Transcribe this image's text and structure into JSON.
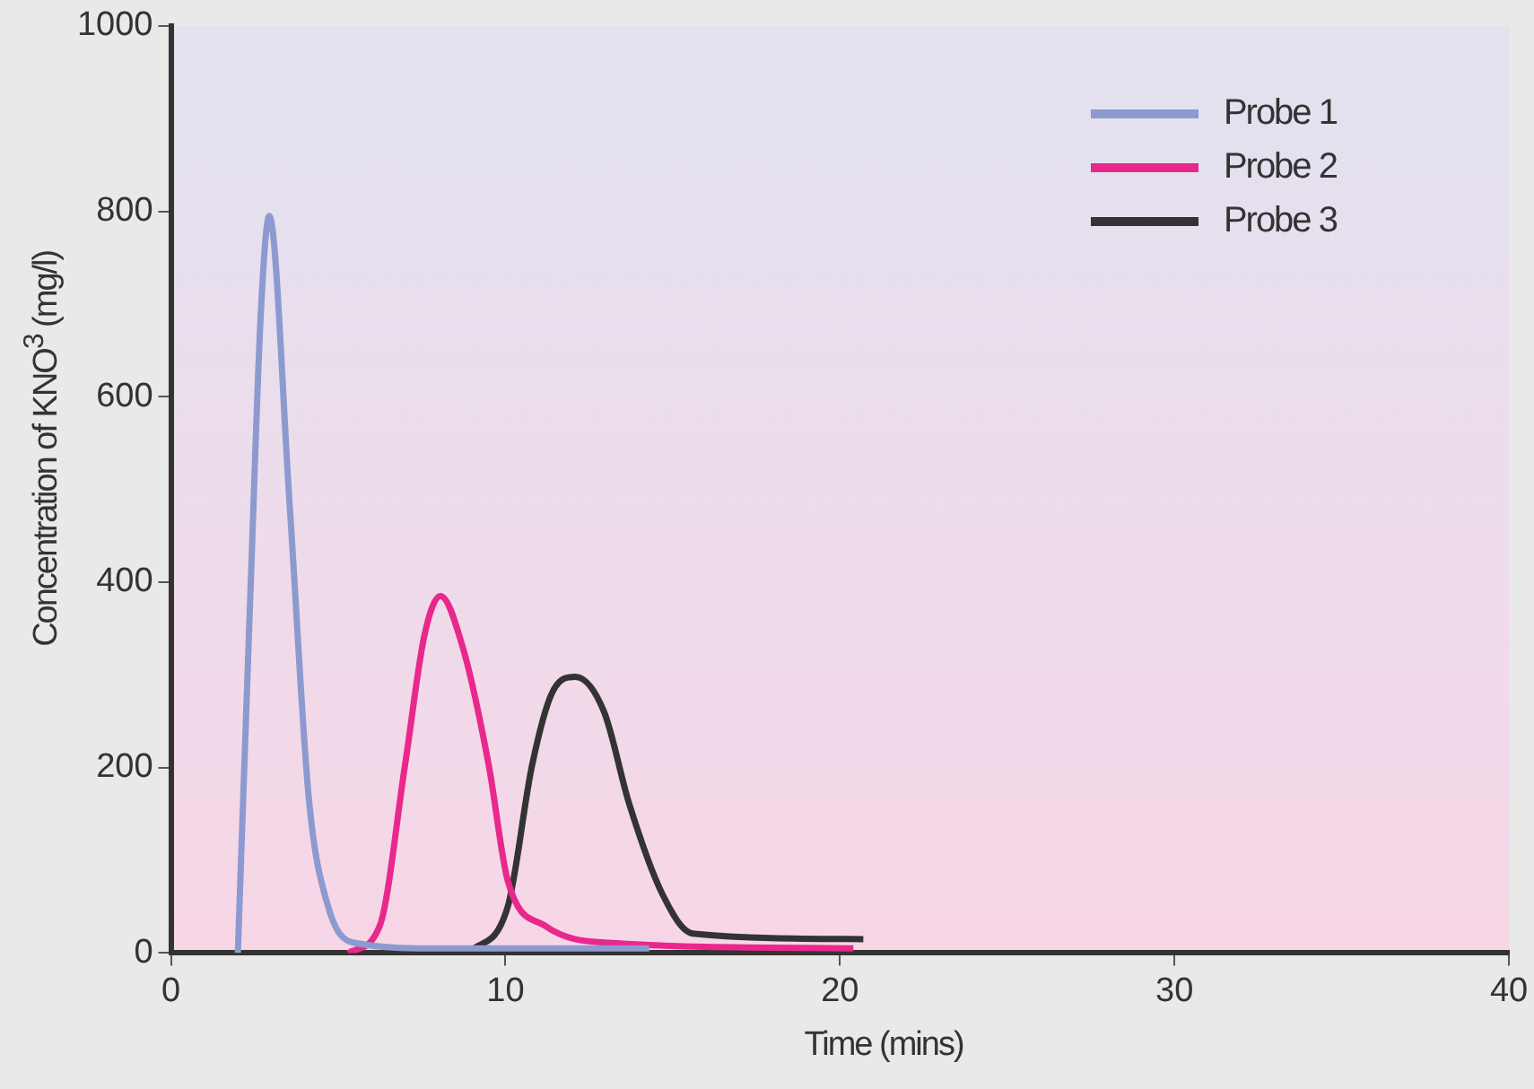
{
  "chart_data": {
    "type": "line",
    "xlabel": "Time (mins)",
    "ylabel": "Concentration of KNO$^{3}$ (mg/l)",
    "xlim": [
      0,
      40
    ],
    "ylim": [
      0,
      1000
    ],
    "xticks": [
      0,
      10,
      20,
      30,
      40
    ],
    "yticks": [
      0,
      200,
      400,
      600,
      800,
      1000
    ],
    "grid": false,
    "legend": "top right",
    "marker": "none",
    "line_style": "solid",
    "series": [
      {
        "name": "Probe 1",
        "color": "#8c9ad0",
        "x": [
          2.0,
          2.4,
          2.69,
          2.94,
          3.55,
          4.12,
          4.7,
          5.47,
          8,
          14.3
        ],
        "values": [
          0,
          413,
          692,
          795,
          483,
          168,
          50,
          11,
          5,
          5
        ]
      },
      {
        "name": "Probe 2",
        "color": "#e8288c",
        "x": [
          5.3,
          6.24,
          7.0,
          7.58,
          8.06,
          8.73,
          9.5,
          10.07,
          11.2,
          13.1,
          20.4
        ],
        "values": [
          0,
          29,
          203,
          343,
          385,
          329,
          203,
          78,
          29,
          11,
          5
        ]
      },
      {
        "name": "Probe 3",
        "color": "#333333",
        "x": [
          8.9,
          10.07,
          10.8,
          11.4,
          12.09,
          12.95,
          13.7,
          14.7,
          15.6,
          20.7
        ],
        "values": [
          0,
          50,
          203,
          281,
          298,
          260,
          161,
          63,
          21,
          15
        ]
      }
    ]
  }
}
